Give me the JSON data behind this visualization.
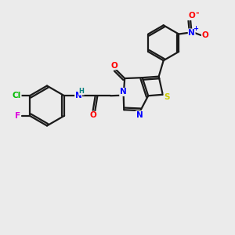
{
  "background_color": "#ebebeb",
  "bond_color": "#1a1a1a",
  "atom_colors": {
    "N": "#0000ff",
    "O": "#ff0000",
    "S": "#cccc00",
    "Cl": "#00bb00",
    "F": "#dd00dd",
    "H": "#008080",
    "C": "#1a1a1a"
  },
  "figsize": [
    3.0,
    3.0
  ],
  "dpi": 100
}
